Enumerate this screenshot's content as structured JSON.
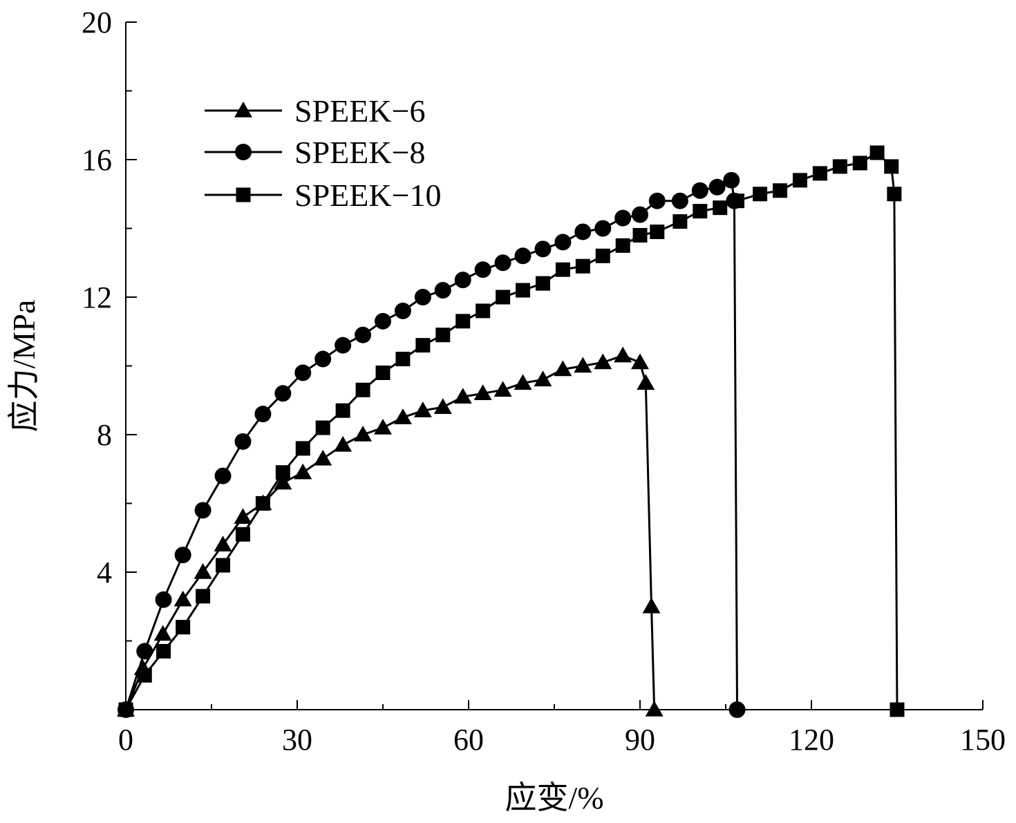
{
  "chart_data": {
    "type": "line",
    "title": "",
    "xlabel": "应变/%",
    "ylabel": "应力/MPa",
    "xlim": [
      0,
      150
    ],
    "ylim": [
      0,
      20
    ],
    "xticks": [
      "0",
      "30",
      "60",
      "90",
      "120",
      "150"
    ],
    "yticks": [
      "4",
      "8",
      "12",
      "16",
      "20"
    ],
    "grid": false,
    "legend_position": "top-left",
    "series": [
      {
        "name": "SPEEK−6",
        "marker": "triangle",
        "color": "#000000",
        "x": [
          0,
          3,
          6.5,
          10,
          13.5,
          17,
          20.5,
          24,
          27.5,
          31,
          34.5,
          38,
          41.5,
          45,
          48.5,
          52,
          55.5,
          59,
          62.5,
          66,
          69.5,
          73,
          76.5,
          80,
          83.5,
          87,
          90,
          91,
          92,
          92.5
        ],
        "y": [
          0,
          1.2,
          2.2,
          3.2,
          4.0,
          4.8,
          5.6,
          6.0,
          6.6,
          6.9,
          7.3,
          7.7,
          8.0,
          8.2,
          8.5,
          8.7,
          8.8,
          9.1,
          9.2,
          9.3,
          9.5,
          9.6,
          9.9,
          10.0,
          10.1,
          10.3,
          10.1,
          9.5,
          3.0,
          0
        ]
      },
      {
        "name": "SPEEK−8",
        "marker": "circle",
        "color": "#000000",
        "x": [
          0,
          3.3,
          6.6,
          10,
          13.5,
          17,
          20.5,
          24,
          27.5,
          31,
          34.5,
          38,
          41.5,
          45,
          48.5,
          52,
          55.5,
          59,
          62.5,
          66,
          69.5,
          73,
          76.5,
          80,
          83.5,
          87,
          90,
          93,
          97,
          100.5,
          103.5,
          106,
          106.5,
          107
        ],
        "y": [
          0,
          1.7,
          3.2,
          4.5,
          5.8,
          6.8,
          7.8,
          8.6,
          9.2,
          9.8,
          10.2,
          10.6,
          10.9,
          11.3,
          11.6,
          12.0,
          12.2,
          12.5,
          12.8,
          13.0,
          13.2,
          13.4,
          13.6,
          13.9,
          14.0,
          14.3,
          14.4,
          14.8,
          14.8,
          15.1,
          15.2,
          15.4,
          14.8,
          0
        ]
      },
      {
        "name": "SPEEK−10",
        "marker": "square",
        "color": "#000000",
        "x": [
          0,
          3.3,
          6.6,
          10,
          13.5,
          17,
          20.5,
          24,
          27.5,
          31,
          34.5,
          38,
          41.5,
          45,
          48.5,
          52,
          55.5,
          59,
          62.5,
          66,
          69.5,
          73,
          76.5,
          80,
          83.5,
          87,
          90,
          93,
          97,
          100.5,
          104,
          107,
          111,
          114.5,
          118,
          121.5,
          125,
          128.5,
          131.5,
          134,
          134.5,
          135
        ],
        "y": [
          0,
          1.0,
          1.7,
          2.4,
          3.3,
          4.2,
          5.1,
          6.0,
          6.9,
          7.6,
          8.2,
          8.7,
          9.3,
          9.8,
          10.2,
          10.6,
          10.9,
          11.3,
          11.6,
          12.0,
          12.2,
          12.4,
          12.8,
          12.9,
          13.2,
          13.5,
          13.8,
          13.9,
          14.2,
          14.5,
          14.6,
          14.8,
          15.0,
          15.1,
          15.4,
          15.6,
          15.8,
          15.9,
          16.2,
          15.8,
          15.0,
          0
        ]
      }
    ]
  }
}
